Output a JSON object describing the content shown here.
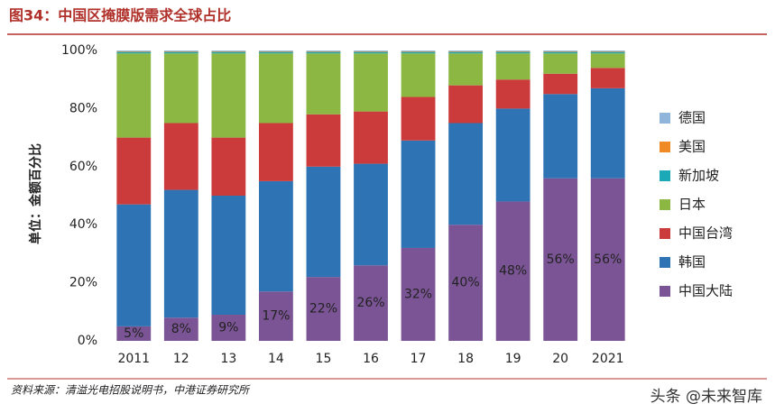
{
  "header": {
    "title": "图34：中国区掩膜版需求全球占比"
  },
  "chart_data": {
    "type": "stacked-bar",
    "ylabel": "单位：金额百分比",
    "categories": [
      "2011",
      "12",
      "13",
      "14",
      "15",
      "16",
      "17",
      "18",
      "19",
      "20",
      "2021"
    ],
    "series": [
      {
        "name": "中国大陆",
        "color": "#7b5495",
        "values": [
          5,
          8,
          9,
          17,
          22,
          26,
          32,
          40,
          48,
          56,
          56
        ],
        "value_labels": [
          "5%",
          "8%",
          "9%",
          "17%",
          "22%",
          "26%",
          "32%",
          "40%",
          "48%",
          "56%",
          "56%"
        ]
      },
      {
        "name": "韩国",
        "color": "#2e74b5",
        "values": [
          42,
          44,
          41,
          38,
          38,
          35,
          37,
          35,
          32,
          29,
          31
        ]
      },
      {
        "name": "中国台湾",
        "color": "#cc3b3b",
        "values": [
          23,
          23,
          20,
          20,
          18,
          18,
          15,
          13,
          10,
          7,
          7
        ]
      },
      {
        "name": "日本",
        "color": "#8db743",
        "values": [
          29,
          24,
          29,
          24,
          21,
          20,
          15,
          11,
          9,
          7,
          5
        ]
      },
      {
        "name": "新加坡",
        "color": "#1ba9b8",
        "values": [
          0.5,
          0.5,
          0.5,
          0.5,
          0.5,
          0.5,
          0.5,
          0.5,
          0.5,
          0.5,
          0.5
        ]
      },
      {
        "name": "美国",
        "color": "#f08a24",
        "values": [
          0.2,
          0.2,
          0.2,
          0.2,
          0.2,
          0.2,
          0.2,
          0.2,
          0.2,
          0.2,
          0.2
        ]
      },
      {
        "name": "德国",
        "color": "#8fb5da",
        "values": [
          0.3,
          0.3,
          0.3,
          0.3,
          0.3,
          0.3,
          0.3,
          0.3,
          0.3,
          0.3,
          0.3
        ]
      }
    ],
    "ylim": [
      0,
      100
    ],
    "yticks": [
      {
        "value": 0,
        "label": "0%"
      },
      {
        "value": 20,
        "label": "20%"
      },
      {
        "value": 40,
        "label": "40%"
      },
      {
        "value": 60,
        "label": "60%"
      },
      {
        "value": 80,
        "label": "80%"
      },
      {
        "value": 100,
        "label": "100%"
      }
    ],
    "legend": "right"
  },
  "footer": {
    "source": "资料来源：清溢光电招股说明书，中港证券研究所",
    "watermark": "头条 @未来智库"
  }
}
